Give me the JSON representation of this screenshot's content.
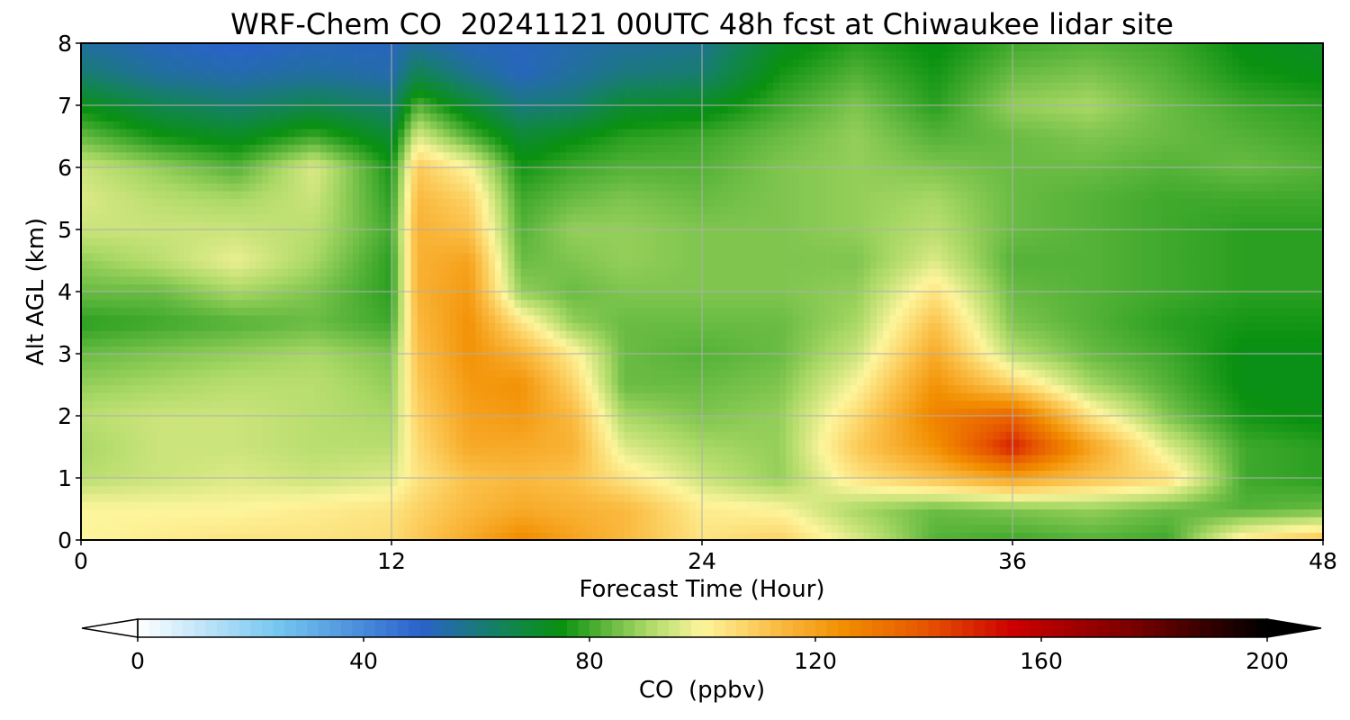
{
  "title": "WRF-Chem CO  20241121 00UTC 48h fcst at Chiwaukee lidar site",
  "chart_data": {
    "type": "heatmap",
    "xlabel": "Forecast Time (Hour)",
    "ylabel": "Alt AGL (km)",
    "xlim": [
      0,
      48
    ],
    "ylim": [
      0,
      8
    ],
    "xticks": [
      "0",
      "12",
      "24",
      "36",
      "48"
    ],
    "yticks": [
      "0",
      "1",
      "2",
      "3",
      "4",
      "5",
      "6",
      "7",
      "8"
    ],
    "grid": true,
    "x": [
      0,
      3,
      6,
      9,
      12,
      13,
      15,
      17,
      19,
      21,
      24,
      27,
      30,
      33,
      36,
      39,
      42,
      45,
      48
    ],
    "y": [
      0,
      0.5,
      1,
      1.5,
      2,
      2.5,
      3,
      3.5,
      4,
      4.5,
      5,
      5.5,
      6,
      6.5,
      7,
      7.5,
      8
    ],
    "z": [
      [
        100,
        102,
        104,
        104,
        106,
        110,
        118,
        126,
        120,
        114,
        104,
        108,
        96,
        82,
        80,
        82,
        80,
        104,
        112
      ],
      [
        100,
        100,
        100,
        102,
        104,
        108,
        114,
        118,
        116,
        114,
        102,
        100,
        90,
        84,
        86,
        88,
        84,
        82,
        84
      ],
      [
        92,
        94,
        96,
        94,
        96,
        104,
        112,
        114,
        112,
        104,
        94,
        88,
        104,
        112,
        120,
        112,
        106,
        80,
        78
      ],
      [
        90,
        94,
        94,
        92,
        92,
        106,
        118,
        118,
        116,
        96,
        90,
        88,
        110,
        124,
        150,
        120,
        96,
        80,
        78
      ],
      [
        92,
        94,
        94,
        92,
        90,
        108,
        120,
        122,
        114,
        90,
        86,
        88,
        106,
        128,
        136,
        104,
        86,
        76,
        74
      ],
      [
        88,
        90,
        92,
        92,
        88,
        110,
        122,
        124,
        108,
        84,
        84,
        86,
        100,
        124,
        108,
        90,
        82,
        74,
        74
      ],
      [
        84,
        86,
        88,
        90,
        86,
        112,
        124,
        116,
        102,
        84,
        82,
        84,
        94,
        118,
        92,
        84,
        80,
        74,
        74
      ],
      [
        78,
        80,
        82,
        84,
        80,
        114,
        124,
        104,
        88,
        84,
        84,
        84,
        90,
        112,
        86,
        82,
        78,
        76,
        76
      ],
      [
        84,
        84,
        90,
        86,
        78,
        116,
        122,
        88,
        84,
        86,
        86,
        86,
        88,
        104,
        84,
        82,
        80,
        78,
        78
      ],
      [
        88,
        92,
        98,
        90,
        78,
        116,
        120,
        84,
        86,
        88,
        86,
        86,
        86,
        96,
        82,
        82,
        80,
        78,
        78
      ],
      [
        94,
        94,
        94,
        92,
        80,
        116,
        112,
        82,
        88,
        88,
        86,
        86,
        88,
        92,
        84,
        82,
        80,
        78,
        78
      ],
      [
        96,
        92,
        90,
        94,
        78,
        114,
        108,
        80,
        84,
        86,
        84,
        86,
        88,
        90,
        84,
        82,
        80,
        80,
        80
      ],
      [
        94,
        88,
        82,
        96,
        76,
        110,
        100,
        76,
        80,
        82,
        82,
        86,
        88,
        86,
        84,
        84,
        82,
        84,
        82
      ],
      [
        84,
        76,
        72,
        80,
        70,
        96,
        82,
        70,
        74,
        78,
        80,
        84,
        88,
        82,
        84,
        86,
        84,
        82,
        80
      ],
      [
        74,
        66,
        62,
        66,
        62,
        82,
        70,
        60,
        62,
        70,
        72,
        80,
        86,
        78,
        88,
        90,
        84,
        80,
        78
      ],
      [
        62,
        56,
        54,
        56,
        54,
        66,
        58,
        52,
        56,
        60,
        62,
        76,
        82,
        76,
        84,
        86,
        82,
        76,
        74
      ],
      [
        56,
        52,
        50,
        52,
        52,
        56,
        52,
        52,
        54,
        56,
        58,
        72,
        78,
        74,
        80,
        82,
        80,
        74,
        72
      ]
    ],
    "colorbar": {
      "label": "CO  (ppbv)",
      "min": 0,
      "max": 200,
      "ticks": [
        "0",
        "40",
        "80",
        "120",
        "160",
        "200"
      ],
      "extend": "both",
      "stops": [
        [
          0,
          "#ffffff"
        ],
        [
          25,
          "#74c6f0"
        ],
        [
          50,
          "#2b62cc"
        ],
        [
          65,
          "#128456"
        ],
        [
          75,
          "#0a9110"
        ],
        [
          90,
          "#a9d865"
        ],
        [
          100,
          "#fdf59c"
        ],
        [
          112,
          "#fbc14a"
        ],
        [
          125,
          "#f28e00"
        ],
        [
          140,
          "#e65300"
        ],
        [
          155,
          "#cc0000"
        ],
        [
          175,
          "#7e0000"
        ],
        [
          200,
          "#000000"
        ]
      ]
    }
  }
}
